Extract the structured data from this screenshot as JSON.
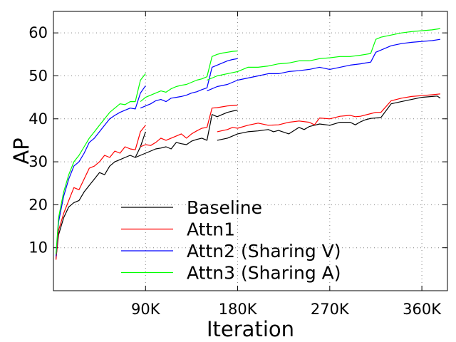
{
  "chart_data": {
    "type": "line",
    "xlabel": "Iteration",
    "ylabel": "AP",
    "xlim": [
      0,
      385000
    ],
    "ylim": [
      0,
      65
    ],
    "x_ticks": [
      {
        "value": 90000,
        "label": "90K"
      },
      {
        "value": 180000,
        "label": "180K"
      },
      {
        "value": 270000,
        "label": "270K"
      },
      {
        "value": 360000,
        "label": "360K"
      }
    ],
    "y_ticks": [
      {
        "value": 10,
        "label": "10"
      },
      {
        "value": 20,
        "label": "20"
      },
      {
        "value": 30,
        "label": "30"
      },
      {
        "value": 40,
        "label": "40"
      },
      {
        "value": 50,
        "label": "50"
      },
      {
        "value": 60,
        "label": "60"
      }
    ],
    "grid": true,
    "legend_position": "bottom-center",
    "series": [
      {
        "name": "Baseline",
        "color": "#000000",
        "segments": [
          {
            "x": [
              2500,
              5000,
              10000,
              15000,
              20000,
              25000,
              30000,
              35000,
              40000,
              45000,
              50000,
              55000,
              60000,
              65000,
              70000,
              75000,
              80000,
              85000,
              90000
            ],
            "y": [
              7.5,
              13,
              17,
              19.5,
              20.5,
              21,
              23,
              24.5,
              26,
              27.5,
              27,
              29,
              30,
              30.5,
              31,
              31.5,
              31,
              33.5,
              37
            ]
          },
          {
            "x": [
              80000,
              85000,
              90000,
              95000,
              100000,
              105000,
              110000,
              115000,
              120000,
              125000,
              130000,
              135000,
              140000,
              145000,
              150000,
              155000,
              160000,
              165000,
              170000,
              175000,
              180000
            ],
            "y": [
              31,
              31.5,
              32,
              32.5,
              33,
              33.2,
              33.5,
              33,
              34.5,
              34.2,
              34,
              34.8,
              35.2,
              35.5,
              35,
              41,
              40.5,
              41,
              41.5,
              41.8,
              42
            ]
          },
          {
            "x": [
              160000,
              170000,
              180000,
              190000,
              200000,
              210000,
              215000,
              220000,
              230000,
              240000,
              245000,
              250000,
              255000,
              260000,
              270000,
              280000,
              290000,
              295000,
              300000,
              305000,
              310000,
              320000,
              330000,
              340000,
              350000,
              360000,
              370000,
              375000,
              378000
            ],
            "y": [
              35,
              35.5,
              36.5,
              37,
              37.2,
              37.5,
              37,
              37.3,
              36.5,
              38,
              37.5,
              38.2,
              38.5,
              38.8,
              38.5,
              39.2,
              39.2,
              38.6,
              39.3,
              39.8,
              40.1,
              40.3,
              43.5,
              44,
              44.5,
              45,
              45.2,
              45.3,
              44.8
            ]
          }
        ]
      },
      {
        "name": "Attn1",
        "color": "#ff0000",
        "segments": [
          {
            "x": [
              2500,
              5000,
              10000,
              15000,
              20000,
              25000,
              30000,
              35000,
              40000,
              45000,
              50000,
              55000,
              60000,
              65000,
              70000,
              75000,
              80000,
              85000,
              90000
            ],
            "y": [
              7.2,
              14,
              18,
              21,
              24,
              23.5,
              26,
              28.5,
              29,
              30,
              31.5,
              31,
              32.5,
              32,
              33.5,
              33,
              32.8,
              37,
              38.5
            ]
          },
          {
            "x": [
              85000,
              90000,
              95000,
              100000,
              105000,
              110000,
              115000,
              120000,
              125000,
              130000,
              135000,
              140000,
              145000,
              150000,
              155000,
              160000,
              165000,
              170000,
              175000,
              180000
            ],
            "y": [
              33.5,
              34,
              33.8,
              34.5,
              35.5,
              35,
              35.5,
              36,
              36.5,
              35.5,
              36.5,
              37.2,
              37.8,
              38,
              42.5,
              42.6,
              42.8,
              43,
              43.1,
              43.2
            ]
          },
          {
            "x": [
              160000,
              170000,
              175000,
              180000,
              190000,
              200000,
              210000,
              220000,
              230000,
              240000,
              250000,
              255000,
              260000,
              270000,
              280000,
              290000,
              295000,
              300000,
              310000,
              315000,
              320000,
              330000,
              340000,
              350000,
              360000,
              370000,
              378000
            ],
            "y": [
              37,
              37.5,
              38,
              37.8,
              38.5,
              39,
              38.5,
              38.6,
              39.2,
              39.5,
              39.2,
              38.6,
              40.2,
              40,
              40.6,
              40.8,
              40.5,
              40.6,
              41.2,
              41.5,
              41.5,
              44.2,
              44.8,
              45.2,
              45.4,
              45.6,
              45.8
            ]
          }
        ]
      },
      {
        "name": "Attn2 (Sharing V)",
        "color": "#0000ff",
        "segments": [
          {
            "x": [
              2500,
              5000,
              10000,
              15000,
              20000,
              25000,
              30000,
              35000,
              40000,
              45000,
              50000,
              55000,
              60000,
              65000,
              70000,
              75000,
              80000,
              85000,
              90000
            ],
            "y": [
              8,
              16,
              22,
              26,
              29,
              30,
              32,
              34.5,
              35.5,
              37,
              38.5,
              40,
              40.8,
              41.5,
              42,
              42.5,
              42.3,
              46,
              47.7
            ]
          },
          {
            "x": [
              85000,
              90000,
              95000,
              100000,
              105000,
              110000,
              115000,
              120000,
              125000,
              130000,
              135000,
              140000,
              145000,
              150000,
              155000,
              160000,
              165000,
              170000,
              175000,
              180000
            ],
            "y": [
              42.5,
              43,
              43.5,
              44.2,
              44.5,
              44,
              44.8,
              45,
              45.2,
              45.5,
              46,
              46.3,
              46.8,
              47.2,
              52,
              52.5,
              53,
              53.5,
              53.8,
              54
            ]
          },
          {
            "x": [
              150000,
              160000,
              170000,
              180000,
              190000,
              200000,
              210000,
              220000,
              230000,
              240000,
              250000,
              260000,
              270000,
              280000,
              290000,
              300000,
              305000,
              310000,
              315000,
              320000,
              330000,
              340000,
              350000,
              360000,
              370000,
              378000
            ],
            "y": [
              46.5,
              47.5,
              48,
              49,
              49.5,
              50,
              50.5,
              50.5,
              51,
              51.2,
              51.5,
              52,
              51.5,
              52,
              52.5,
              52.8,
              53,
              53.2,
              55.5,
              56,
              57,
              57.5,
              57.8,
              58,
              58.2,
              58.5
            ]
          }
        ]
      },
      {
        "name": "Attn3 (Sharing A)",
        "color": "#00ff00",
        "segments": [
          {
            "x": [
              2500,
              5000,
              10000,
              15000,
              20000,
              25000,
              30000,
              35000,
              40000,
              45000,
              50000,
              55000,
              60000,
              65000,
              70000,
              75000,
              80000,
              85000,
              90000
            ],
            "y": [
              8.5,
              17,
              23,
              27,
              30,
              31.5,
              33.5,
              35.5,
              37,
              38.5,
              40,
              41.5,
              42.5,
              43.5,
              43.3,
              44,
              44,
              49,
              50.5
            ]
          },
          {
            "x": [
              85000,
              90000,
              95000,
              100000,
              105000,
              110000,
              115000,
              120000,
              125000,
              130000,
              135000,
              140000,
              145000,
              150000,
              155000,
              160000,
              165000,
              170000,
              175000,
              180000
            ],
            "y": [
              44,
              45,
              45.5,
              46,
              46.5,
              46.2,
              47,
              47.5,
              47.8,
              48,
              48.5,
              49,
              49.3,
              49.8,
              54.5,
              55,
              55.3,
              55.5,
              55.7,
              55.8
            ]
          },
          {
            "x": [
              150000,
              160000,
              170000,
              180000,
              190000,
              200000,
              210000,
              220000,
              230000,
              240000,
              250000,
              260000,
              270000,
              280000,
              290000,
              300000,
              305000,
              310000,
              315000,
              320000,
              330000,
              340000,
              350000,
              360000,
              370000,
              378000
            ],
            "y": [
              49,
              50,
              50.5,
              51,
              52,
              52,
              52.3,
              52.8,
              53,
              53.5,
              53.5,
              54,
              54.2,
              54.5,
              54.5,
              54.8,
              55,
              55.2,
              58.5,
              59,
              59.5,
              60,
              60.3,
              60.5,
              60.7,
              61
            ]
          }
        ]
      }
    ]
  }
}
